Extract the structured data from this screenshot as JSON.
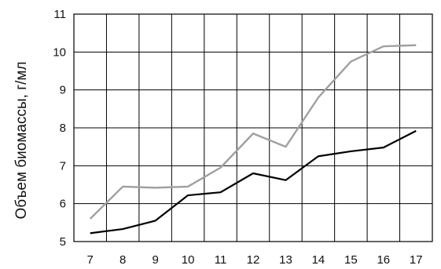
{
  "chart_data": {
    "type": "line",
    "title": "",
    "xlabel": "",
    "ylabel": "Объем биомассы, г/мл",
    "x": [
      7,
      8,
      9,
      10,
      11,
      12,
      13,
      14,
      15,
      16,
      17
    ],
    "xlim": [
      6.5,
      17.5
    ],
    "ylim": [
      5,
      11
    ],
    "yticks": [
      5,
      6,
      7,
      8,
      9,
      10,
      11
    ],
    "grid": true,
    "legend": "none",
    "series": [
      {
        "color": "#a0a0a0",
        "values": [
          5.6,
          6.45,
          6.42,
          6.45,
          6.95,
          7.85,
          7.5,
          8.8,
          9.75,
          10.15,
          10.18
        ]
      },
      {
        "color": "#000000",
        "values": [
          5.22,
          5.33,
          5.55,
          6.22,
          6.3,
          6.8,
          6.62,
          7.25,
          7.38,
          7.48,
          7.92
        ]
      }
    ]
  }
}
